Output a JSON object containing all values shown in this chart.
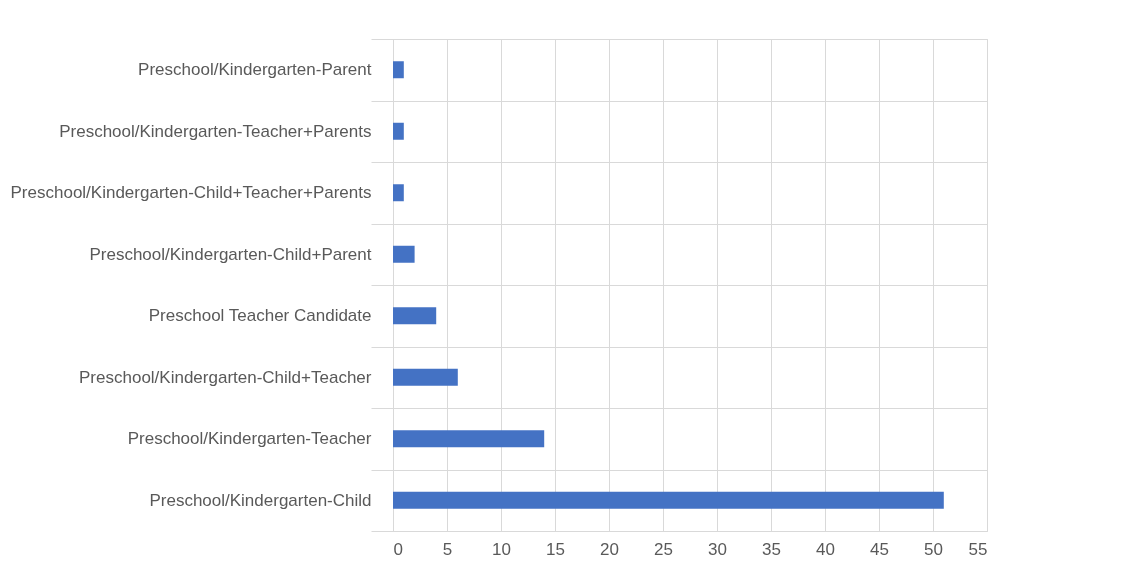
{
  "chart_data": {
    "type": "bar",
    "orientation": "horizontal",
    "categories": [
      "Preschool/Kindergarten-Parent",
      "Preschool/Kindergarten-Teacher+Parents",
      "Preschool/Kindergarten-Child+Teacher+Parents",
      "Preschool/Kindergarten-Child+Parent",
      "Preschool Teacher Candidate",
      "Preschool/Kindergarten-Child+Teacher",
      "Preschool/Kindergarten-Teacher",
      "Preschool/Kindergarten-Child"
    ],
    "values": [
      1,
      1,
      1,
      2,
      4,
      6,
      14,
      51
    ],
    "color": "#4472c4",
    "xlim": [
      0,
      55
    ],
    "xticks": [
      0,
      5,
      10,
      15,
      20,
      25,
      30,
      35,
      40,
      45,
      50,
      55
    ],
    "grid": true
  }
}
